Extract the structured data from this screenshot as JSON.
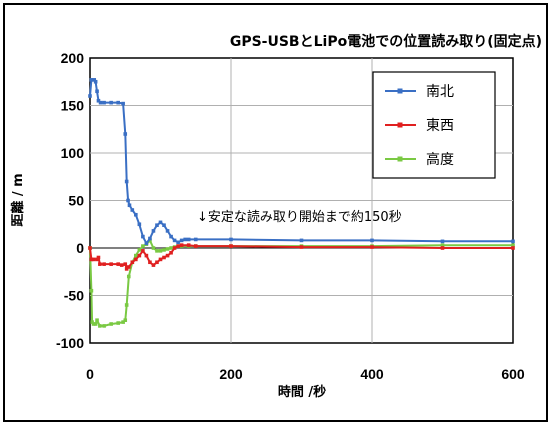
{
  "chart_data": {
    "type": "line",
    "title": "GPS-USBとLiPo電池での位置読み取り(固定点)",
    "xlabel": "時間 /秒",
    "ylabel": "距離 / m",
    "xlim": [
      0,
      600
    ],
    "ylim": [
      -100,
      200
    ],
    "xticks": [
      "0",
      "200",
      "400",
      "600"
    ],
    "yticks": [
      "200",
      "150",
      "100",
      "50",
      "0",
      "-50",
      "-100"
    ],
    "grid": true,
    "legend_position": "top-right",
    "annotation": "↓安定な読み取り開始まで約150秒",
    "series": [
      {
        "name": "南北",
        "color": "#3a6fc4",
        "x": [
          0,
          2,
          6,
          8,
          10,
          12,
          15,
          20,
          30,
          40,
          47,
          50,
          52,
          54,
          56,
          60,
          65,
          70,
          75,
          80,
          85,
          90,
          95,
          100,
          105,
          110,
          115,
          120,
          125,
          130,
          135,
          140,
          150,
          200,
          300,
          400,
          500,
          600
        ],
        "y": [
          160,
          177,
          177,
          175,
          165,
          155,
          153,
          153,
          153,
          153,
          152,
          120,
          70,
          50,
          45,
          40,
          35,
          25,
          12,
          5,
          10,
          18,
          24,
          27,
          24,
          18,
          12,
          8,
          6,
          8,
          9,
          9,
          9,
          9,
          8,
          8,
          7,
          7
        ]
      },
      {
        "name": "東西",
        "color": "#e02020",
        "x": [
          0,
          2,
          5,
          10,
          12,
          14,
          20,
          30,
          40,
          45,
          50,
          52,
          55,
          60,
          65,
          70,
          75,
          80,
          85,
          90,
          95,
          100,
          105,
          110,
          115,
          120,
          125,
          130,
          140,
          150,
          200,
          300,
          400,
          500,
          600
        ],
        "y": [
          0,
          -12,
          -12,
          -12,
          -10,
          -17,
          -17,
          -17,
          -17,
          -18,
          -17,
          -22,
          -20,
          -15,
          -12,
          -8,
          -3,
          -8,
          -15,
          -18,
          -15,
          -12,
          -10,
          -8,
          -5,
          0,
          2,
          3,
          3,
          2,
          2,
          1,
          1,
          0,
          0
        ]
      },
      {
        "name": "高度",
        "color": "#7ac943",
        "x": [
          0,
          2,
          3,
          5,
          8,
          10,
          14,
          20,
          30,
          40,
          47,
          50,
          52,
          55,
          60,
          65,
          70,
          75,
          80,
          85,
          90,
          95,
          100,
          105,
          110,
          115,
          120,
          125,
          130,
          140,
          150,
          200,
          300,
          400,
          500,
          600
        ],
        "y": [
          0,
          -45,
          -78,
          -80,
          -80,
          -76,
          -82,
          -82,
          -80,
          -79,
          -78,
          -76,
          -60,
          -30,
          -15,
          -8,
          -2,
          2,
          4,
          8,
          0,
          -3,
          -3,
          -2,
          -1,
          0,
          1,
          2,
          2,
          2,
          2,
          2,
          2,
          2,
          3,
          3
        ]
      }
    ]
  }
}
